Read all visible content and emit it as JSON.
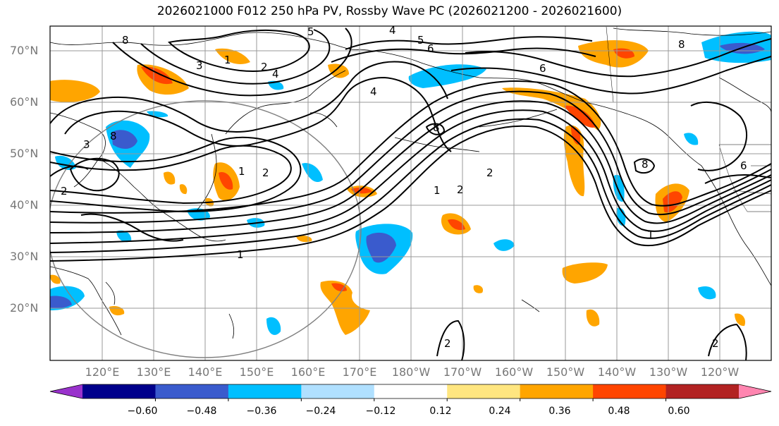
{
  "title": "2026021000 F012 250 hPa PV, Rossby Wave PC (2026021200 - 2026021600)",
  "lat_labels": [
    "70°N",
    "60°N",
    "50°N",
    "40°N",
    "30°N",
    "20°N"
  ],
  "lon_labels": [
    "120°E",
    "130°E",
    "140°E",
    "150°E",
    "160°E",
    "170°E",
    "180°W",
    "170°W",
    "160°W",
    "150°W",
    "140°W",
    "130°W",
    "120°W"
  ],
  "contour_labels": [
    "1",
    "2",
    "3",
    "4",
    "5",
    "6",
    "8"
  ],
  "colorbar": {
    "ticks": [
      "−0.60",
      "−0.48",
      "−0.36",
      "−0.24",
      "−0.12",
      "0.12",
      "0.24",
      "0.36",
      "0.48",
      "0.60"
    ],
    "colors": [
      "#9932cc",
      "#00008b",
      "#3a5bcd",
      "#00bfff",
      "#b0e0ff",
      "#ffffff",
      "#ffe680",
      "#ffa500",
      "#ff4500",
      "#b22222",
      "#ff85b0"
    ]
  },
  "colors": {
    "contour": "#000000",
    "grid": "#999999",
    "circle": "#808080",
    "coast": "#000000"
  }
}
